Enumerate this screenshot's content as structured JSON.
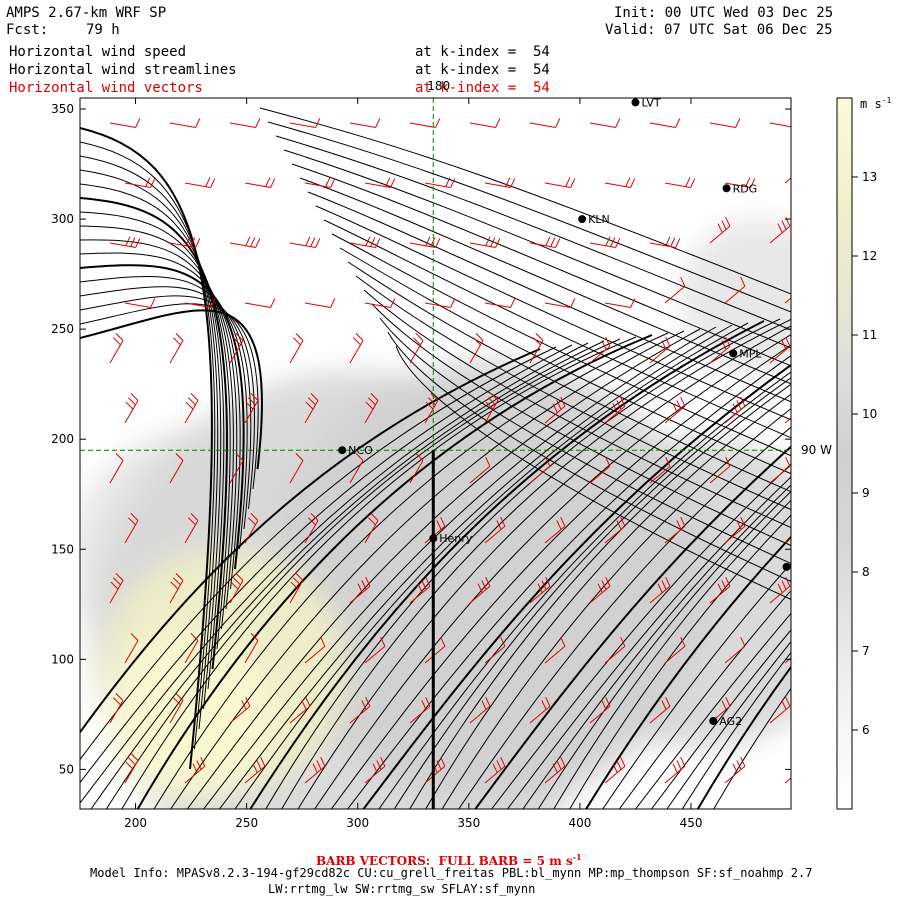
{
  "header": {
    "model": "AMPS 2.67-km WRF SP",
    "fcst_label": "Fcst:",
    "fcst_value": "79 h",
    "init": "Init: 00 UTC Wed 03 Dec 25",
    "valid": "Valid: 07 UTC Sat 06 Dec 25",
    "fields": [
      {
        "name": "Horizontal wind speed",
        "level": "at k-index =  54",
        "color": "#000000"
      },
      {
        "name": "Horizontal wind streamlines",
        "level": "at k-index =  54",
        "color": "#000000"
      },
      {
        "name": "Horizontal wind vectors",
        "level": "at k-index =  54",
        "color": "#e00000"
      }
    ]
  },
  "chart_data": {
    "type": "heatmap",
    "title": "Horizontal wind speed / streamlines / vectors",
    "units": "m s-1",
    "xlim": [
      175,
      495
    ],
    "ylim": [
      32,
      355
    ],
    "x_ticks": [
      200,
      250,
      300,
      350,
      400,
      450
    ],
    "y_ticks": [
      50,
      100,
      150,
      200,
      250,
      300,
      350
    ],
    "colorbar": {
      "levels": [
        6,
        7,
        8,
        9,
        10,
        11,
        12,
        13
      ],
      "range": [
        5,
        14
      ],
      "colors": [
        "#ffffff",
        "#f5f5f5",
        "#e6e6e6",
        "#d6d6d6",
        "#d0d0d0",
        "#dddddd",
        "#e6e6cc",
        "#f0f0c8",
        "#f8f8d0"
      ]
    },
    "reference_lines": [
      {
        "type": "longitude",
        "label": "180",
        "x": 334
      },
      {
        "type": "latitude",
        "label": "90 W",
        "y": 195
      }
    ],
    "transect": {
      "x": 334,
      "y_from": 32,
      "y_to": 195
    },
    "stations": [
      {
        "name": "NCO",
        "x": 293,
        "y": 195
      },
      {
        "name": "Henry",
        "x": 334,
        "y": 155
      },
      {
        "name": "KLN",
        "x": 401,
        "y": 300
      },
      {
        "name": "RDG",
        "x": 466,
        "y": 314
      },
      {
        "name": "MPL",
        "x": 469,
        "y": 239
      },
      {
        "name": "AG2",
        "x": 460,
        "y": 72
      },
      {
        "name": "",
        "x": 493,
        "y": 142
      },
      {
        "name": "LVT",
        "x": 425,
        "y": 353
      }
    ],
    "wind_speed_regions": [
      {
        "speed": 13,
        "center": [
          225,
          75
        ],
        "radius": 38
      },
      {
        "speed": 12,
        "center": [
          240,
          95
        ],
        "radius": 55
      },
      {
        "speed": 9,
        "center": [
          360,
          135
        ],
        "radius": 100
      },
      {
        "speed": 8,
        "center": [
          300,
          110
        ],
        "radius": 120
      },
      {
        "speed": 8,
        "center": [
          455,
          130
        ],
        "radius": 70
      },
      {
        "speed": 7,
        "center": [
          230,
          145
        ],
        "radius": 60
      },
      {
        "speed": 7,
        "center": [
          480,
          265
        ],
        "radius": 35
      }
    ],
    "barb_reference": "BARB VECTORS: FULL BARB = 5 m s-1"
  },
  "footer": {
    "barb_note": "BARB VECTORS:  FULL BARB = 5 m s",
    "barb_exp": "-1",
    "model_info": "Model Info: MPASv8.2.3-194-gf29cd82c CU:cu_grell_freitas PBL:bl_mynn MP:mp_thompson SF:sf_noahmp 2.7",
    "model_info2": "LW:rrtmg_lw SW:rrtmg_sw SFLAY:sf_mynn"
  },
  "colorbar_title": "m s",
  "colorbar_title_exp": "-1"
}
